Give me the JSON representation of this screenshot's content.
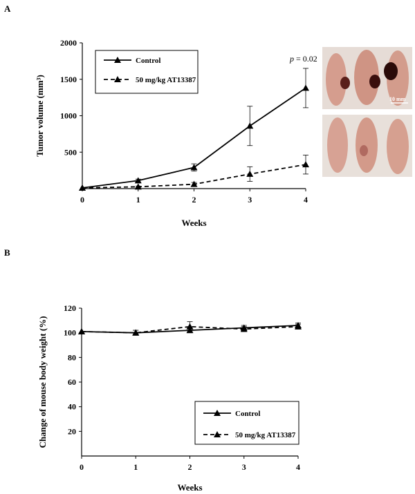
{
  "chart_data": [
    {
      "panel": "A",
      "type": "line",
      "xlabel": "Weeks",
      "ylabel": "Tumor volume (mm³)",
      "x": [
        0,
        1,
        2,
        3,
        4
      ],
      "xticks": [
        "0",
        "1",
        "2",
        "3",
        "4"
      ],
      "xlim": [
        0,
        4
      ],
      "ylim": [
        0,
        2000
      ],
      "yticks": [
        "500",
        "1000",
        "1500",
        "2000"
      ],
      "ytick_values": [
        500,
        1000,
        1500,
        2000
      ],
      "grid": false,
      "legend_position": "top-left",
      "annotation": {
        "p_symbol": "p",
        "p_text": " = 0.02"
      },
      "series": [
        {
          "name": "Control",
          "style": "solid",
          "values": [
            10,
            110,
            290,
            860,
            1380
          ],
          "errors": [
            0,
            20,
            50,
            270,
            270
          ]
        },
        {
          "name": "50 mg/kg AT13387",
          "style": "dashed",
          "values": [
            10,
            25,
            60,
            200,
            330
          ],
          "errors": [
            0,
            10,
            25,
            100,
            130
          ]
        }
      ],
      "photos": {
        "scale_label": "10 mm"
      }
    },
    {
      "panel": "B",
      "type": "line",
      "xlabel": "Weeks",
      "ylabel": "Change of mouse body weight (%)",
      "x": [
        0,
        1,
        2,
        3,
        4
      ],
      "xticks": [
        "0",
        "1",
        "2",
        "3",
        "4"
      ],
      "xlim": [
        0,
        4
      ],
      "ylim": [
        0,
        120
      ],
      "yticks": [
        "20",
        "40",
        "60",
        "80",
        "100",
        "120"
      ],
      "ytick_values": [
        20,
        40,
        60,
        80,
        100,
        120
      ],
      "grid": false,
      "legend_position": "bottom-right",
      "series": [
        {
          "name": "Control",
          "style": "solid",
          "values": [
            101,
            100,
            102,
            104,
            106
          ],
          "errors": [
            0,
            2,
            2,
            2,
            2
          ]
        },
        {
          "name": "50 mg/kg AT13387",
          "style": "dashed",
          "values": [
            101,
            100,
            105,
            103,
            105
          ],
          "errors": [
            0,
            2,
            4,
            2,
            2
          ]
        }
      ]
    }
  ]
}
